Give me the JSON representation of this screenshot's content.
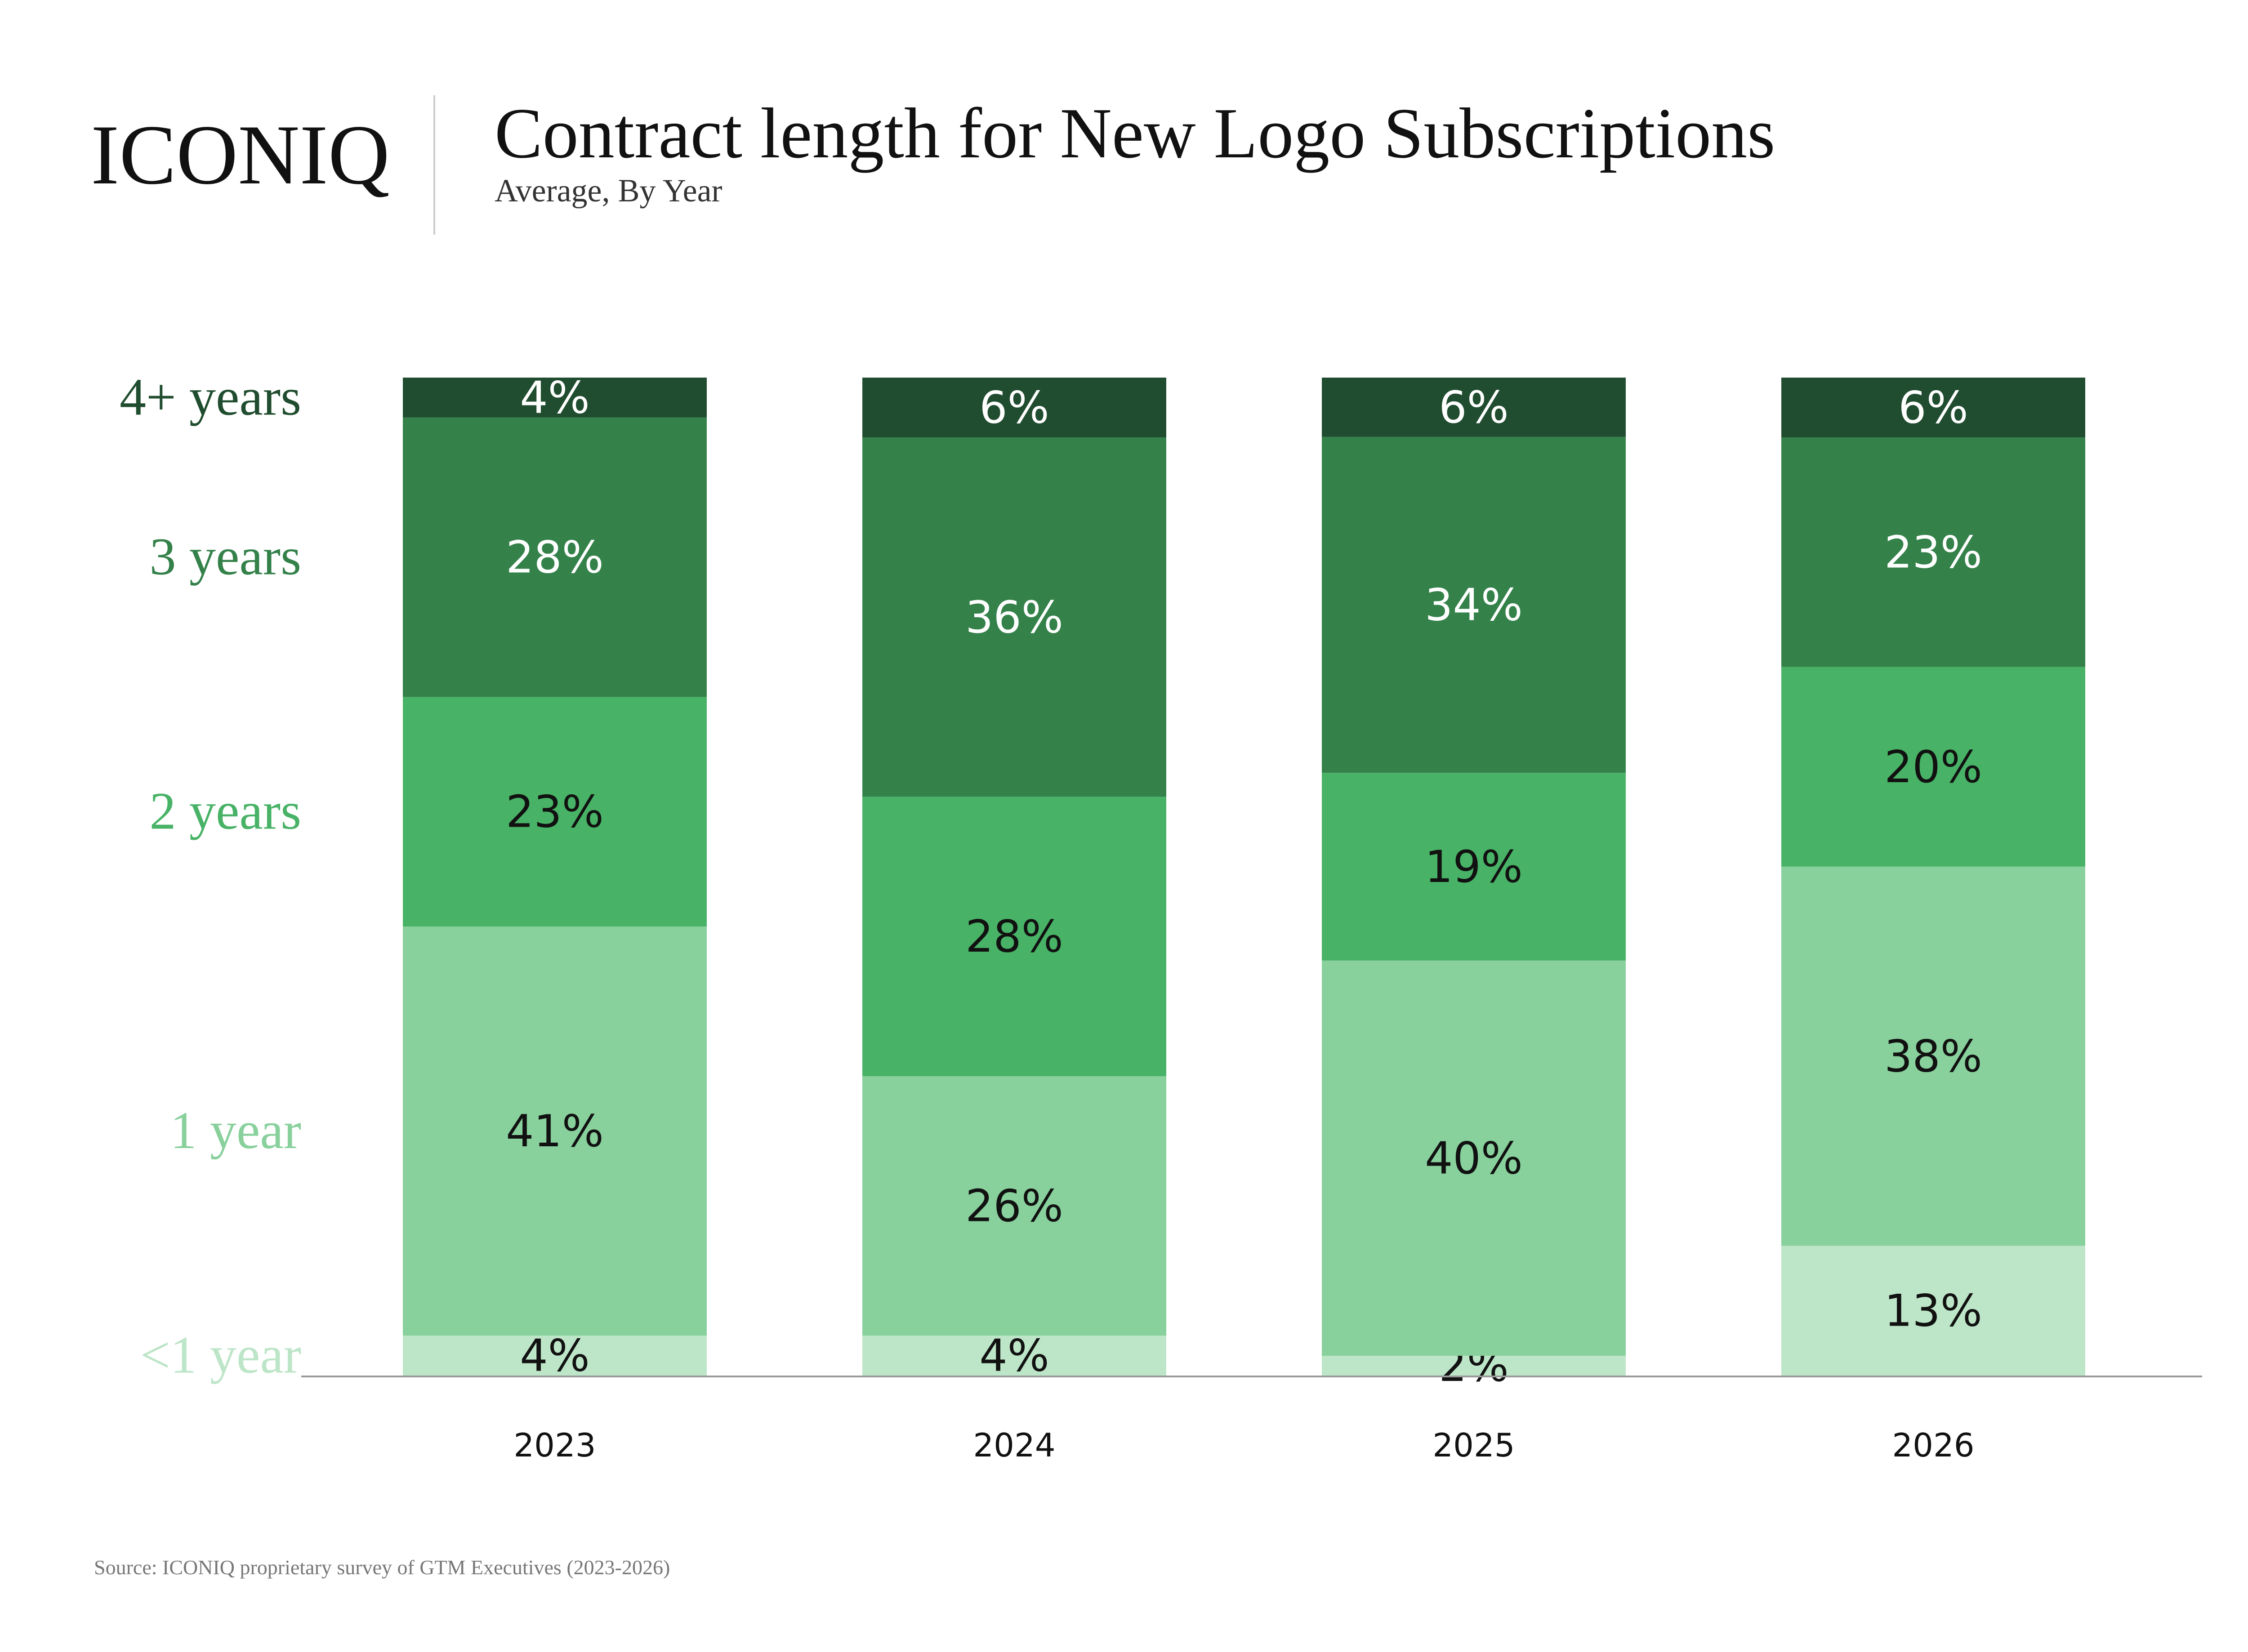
{
  "brand": {
    "logo": "ICONIQ"
  },
  "header": {
    "title": "Contract length for New Logo Subscriptions",
    "subtitle": "Average, By Year"
  },
  "source": "Source: ICONIQ proprietary survey of GTM Executives (2023-2026)",
  "chart_data": {
    "type": "bar",
    "stacked": true,
    "title": "Contract length for New Logo Subscriptions",
    "subtitle": "Average, By Year",
    "categories": [
      "2023",
      "2024",
      "2025",
      "2026"
    ],
    "unit": "%",
    "series": [
      {
        "name": "<1 year",
        "color": "#bde5c7",
        "label_color": "#111111",
        "values": [
          4,
          4,
          2,
          13
        ]
      },
      {
        "name": "1 year",
        "color": "#88d09c",
        "label_color": "#111111",
        "values": [
          41,
          26,
          40,
          38
        ]
      },
      {
        "name": "2 years",
        "color": "#48b266",
        "label_color": "#111111",
        "values": [
          23,
          28,
          19,
          20
        ]
      },
      {
        "name": "3 years",
        "color": "#34814a",
        "label_color": "#ffffff",
        "values": [
          28,
          36,
          34,
          23
        ]
      },
      {
        "name": "4+ years",
        "color": "#204d2f",
        "label_color": "#ffffff",
        "values": [
          4,
          6,
          6,
          6
        ]
      }
    ],
    "legend": "left, series names aligned to 2023 segments",
    "grid": false
  }
}
